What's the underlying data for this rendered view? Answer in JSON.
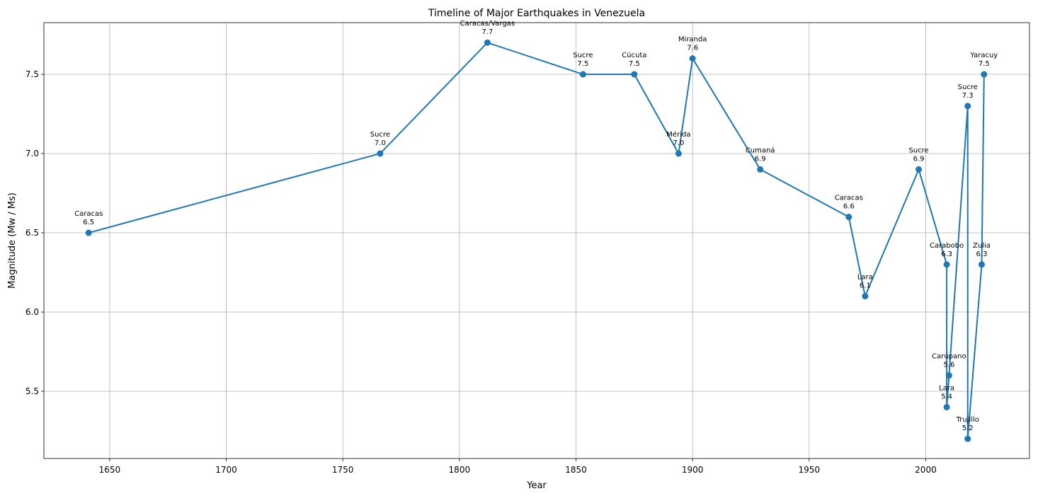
{
  "chart_data": {
    "type": "line",
    "title": "Timeline of Major Earthquakes in Venezuela",
    "xlabel": "Year",
    "ylabel": "Magnitude (Mw / Ms)",
    "x": [
      1641,
      1766,
      1812,
      1853,
      1875,
      1894,
      1900,
      1929,
      1967,
      1974,
      1997,
      2009,
      2009,
      2010,
      2018,
      2018,
      2024,
      2025
    ],
    "values": [
      6.5,
      7.0,
      7.7,
      7.5,
      7.5,
      7.0,
      7.6,
      6.9,
      6.6,
      6.1,
      6.9,
      6.3,
      5.4,
      5.6,
      7.3,
      5.2,
      6.3,
      7.5
    ],
    "value_labels": [
      "6.5",
      "7.0",
      "7.7",
      "7.5",
      "7.5",
      "7.0",
      "7.6",
      "6.9",
      "6.6",
      "6.1",
      "6.9",
      "6.3",
      "5.4",
      "5.6",
      "7.3",
      "5.2",
      "6.3",
      "7.5"
    ],
    "labels": [
      "Caracas",
      "Sucre",
      "Caracas/Vargas",
      "Sucre",
      "Cúcuta",
      "Mérida",
      "Miranda",
      "Cumaná",
      "Caracas",
      "Lara",
      "Sucre",
      "Carabobo",
      "Lara",
      "Carúpano",
      "Sucre",
      "Trujillo",
      "Zulia",
      "Yaracuy"
    ],
    "color": "#1f77b4",
    "xlim": [
      1621.8,
      2044.5
    ],
    "ylim": [
      5.076,
      7.826
    ],
    "xticks": [
      1650,
      1700,
      1750,
      1800,
      1850,
      1900,
      1950,
      2000
    ],
    "yticks": [
      5.5,
      {
        "value": 6,
        "label": "6.0"
      },
      6.5,
      {
        "value": 7,
        "label": "7.0"
      },
      7.5
    ],
    "grid": true
  }
}
